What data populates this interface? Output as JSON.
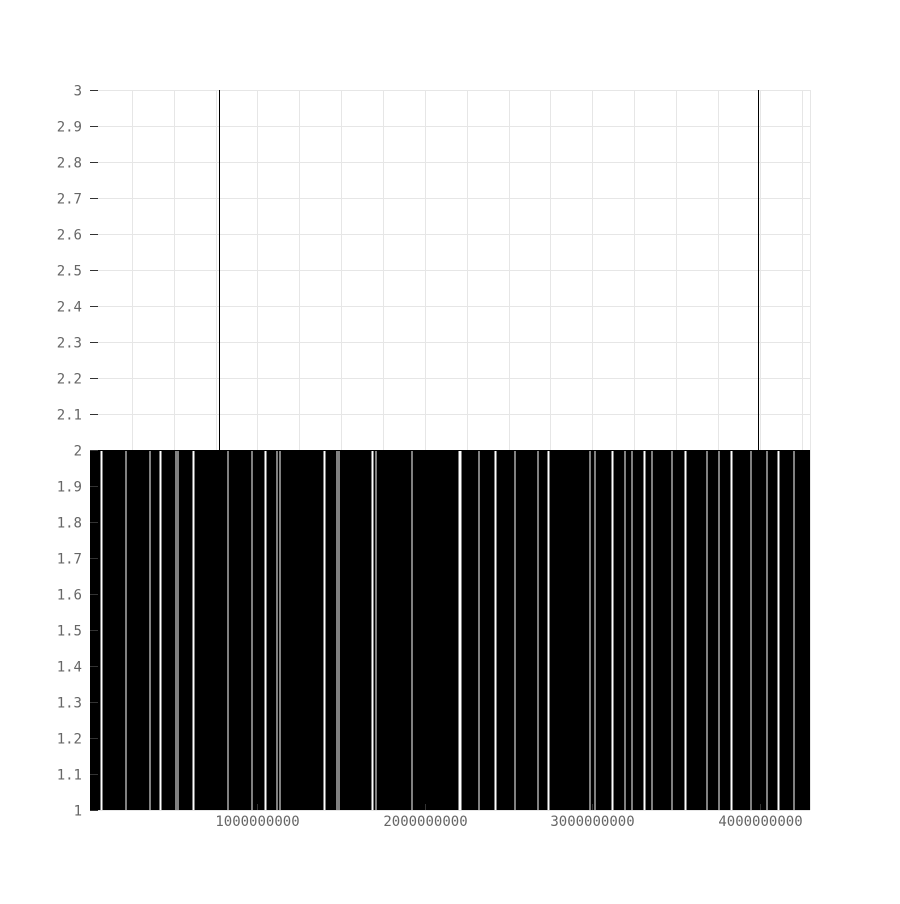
{
  "chart_data": {
    "type": "line",
    "title": "",
    "xlabel": "",
    "ylabel": "",
    "xlim": [
      0,
      4300000000
    ],
    "ylim": [
      1,
      3
    ],
    "x_ticks": [
      {
        "value": 1000000000,
        "label": "1000000000"
      },
      {
        "value": 2000000000,
        "label": "2000000000"
      },
      {
        "value": 3000000000,
        "label": "3000000000"
      },
      {
        "value": 4000000000,
        "label": "4000000000"
      }
    ],
    "y_ticks": [
      {
        "value": 1,
        "label": "1"
      },
      {
        "value": 1.1,
        "label": "1.1"
      },
      {
        "value": 1.2,
        "label": "1.2"
      },
      {
        "value": 1.3,
        "label": "1.3"
      },
      {
        "value": 1.4,
        "label": "1.4"
      },
      {
        "value": 1.5,
        "label": "1.5"
      },
      {
        "value": 1.6,
        "label": "1.6"
      },
      {
        "value": 1.7,
        "label": "1.7"
      },
      {
        "value": 1.8,
        "label": "1.8"
      },
      {
        "value": 1.9,
        "label": "1.9"
      },
      {
        "value": 2,
        "label": "2"
      },
      {
        "value": 2.1,
        "label": "2.1"
      },
      {
        "value": 2.2,
        "label": "2.2"
      },
      {
        "value": 2.3,
        "label": "2.3"
      },
      {
        "value": 2.4,
        "label": "2.4"
      },
      {
        "value": 2.5,
        "label": "2.5"
      },
      {
        "value": 2.6,
        "label": "2.6"
      },
      {
        "value": 2.7,
        "label": "2.7"
      },
      {
        "value": 2.8,
        "label": "2.8"
      },
      {
        "value": 2.9,
        "label": "2.9"
      },
      {
        "value": 3,
        "label": "3"
      }
    ],
    "grid": true,
    "grid_color": "#e6e6e6",
    "line_color": "#000000",
    "series": [
      {
        "y_baseline": 1,
        "y_levels": [
          1,
          2,
          3
        ],
        "spikes_to_3_at": [
          770000000,
          3990000000
        ],
        "low_gaps_at": [
          60000000,
          210000000,
          350000000,
          410000000,
          510000000,
          520000000,
          610000000,
          820000000,
          960000000,
          1040000000,
          1110000000,
          1130000000,
          1390000000,
          1470000000,
          1480000000,
          1680000000,
          1700000000,
          1920000000,
          2200000000,
          2210000000,
          2320000000,
          2410000000,
          2530000000,
          2670000000,
          2730000000,
          2980000000,
          3010000000,
          3110000000,
          3190000000,
          3230000000,
          3300000000,
          3350000000,
          3470000000,
          3550000000,
          3680000000,
          3750000000,
          3820000000,
          3940000000,
          4040000000,
          4100000000,
          4200000000
        ]
      }
    ]
  }
}
